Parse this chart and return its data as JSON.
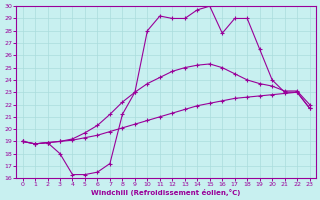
{
  "xlabel": "Windchill (Refroidissement éolien,°C)",
  "bg_color": "#c8f0f0",
  "line_color": "#990099",
  "grid_color": "#aadddd",
  "xlim": [
    -0.5,
    23.5
  ],
  "ylim": [
    16,
    30
  ],
  "xticks": [
    0,
    1,
    2,
    3,
    4,
    5,
    6,
    7,
    8,
    9,
    10,
    11,
    12,
    13,
    14,
    15,
    16,
    17,
    18,
    19,
    20,
    21,
    22,
    23
  ],
  "yticks": [
    16,
    17,
    18,
    19,
    20,
    21,
    22,
    23,
    24,
    25,
    26,
    27,
    28,
    29,
    30
  ],
  "line1_x": [
    0,
    1,
    2,
    3,
    4,
    5,
    6,
    7,
    8,
    9,
    10,
    11,
    12,
    13,
    14,
    15,
    16,
    17,
    18,
    19,
    20,
    21,
    22,
    23
  ],
  "line1_y": [
    19.0,
    18.8,
    18.9,
    19.0,
    19.1,
    19.3,
    19.5,
    19.8,
    20.1,
    20.4,
    20.7,
    21.0,
    21.3,
    21.6,
    21.9,
    22.1,
    22.3,
    22.5,
    22.6,
    22.7,
    22.8,
    22.9,
    23.0,
    21.7
  ],
  "line2_x": [
    0,
    1,
    2,
    3,
    4,
    5,
    6,
    7,
    8,
    9,
    10,
    11,
    12,
    13,
    14,
    15,
    16,
    17,
    18,
    19,
    20,
    21,
    22,
    23
  ],
  "line2_y": [
    19.0,
    18.8,
    18.9,
    19.0,
    19.2,
    19.7,
    20.3,
    21.2,
    22.2,
    23.0,
    23.7,
    24.2,
    24.7,
    25.0,
    25.2,
    25.3,
    25.0,
    24.5,
    24.0,
    23.7,
    23.5,
    23.1,
    23.1,
    22.0
  ],
  "line3_x": [
    0,
    1,
    2,
    3,
    4,
    5,
    6,
    7,
    8,
    9,
    10,
    11,
    12,
    13,
    14,
    15,
    16,
    17,
    18,
    19,
    20,
    21,
    22,
    23
  ],
  "line3_y": [
    19.0,
    18.8,
    18.9,
    18.0,
    16.3,
    16.3,
    16.5,
    17.2,
    21.2,
    23.0,
    28.0,
    29.2,
    29.0,
    29.0,
    29.7,
    30.0,
    27.8,
    29.0,
    29.0,
    26.5,
    24.0,
    23.0,
    23.0,
    21.7
  ]
}
